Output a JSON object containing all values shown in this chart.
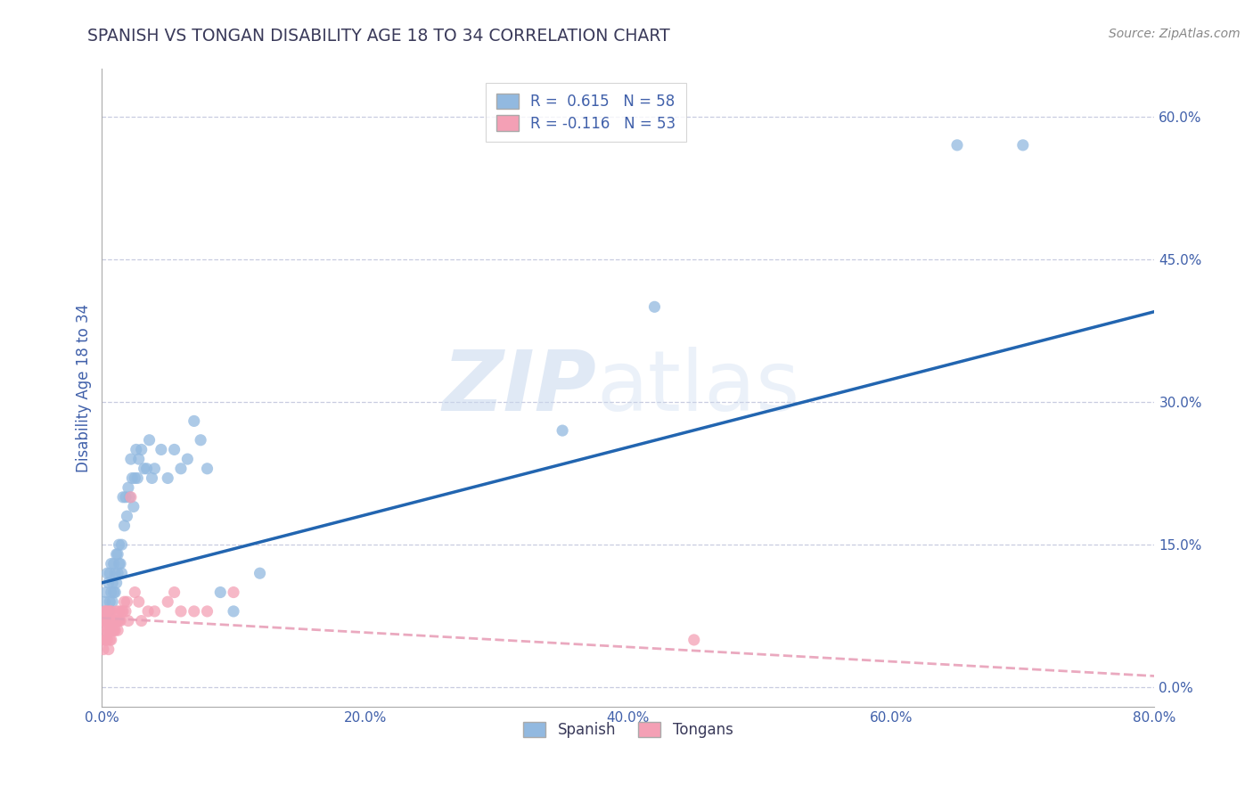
{
  "title": "SPANISH VS TONGAN DISABILITY AGE 18 TO 34 CORRELATION CHART",
  "source": "Source: ZipAtlas.com",
  "ylabel": "Disability Age 18 to 34",
  "xlabel": "",
  "xlim": [
    0,
    0.8
  ],
  "ylim": [
    -0.02,
    0.65
  ],
  "yticks": [
    0.0,
    0.15,
    0.3,
    0.45,
    0.6
  ],
  "xticks": [
    0.0,
    0.2,
    0.4,
    0.6,
    0.8
  ],
  "xtick_labels": [
    "0.0%",
    "20.0%",
    "40.0%",
    "60.0%",
    "80.0%"
  ],
  "ytick_labels": [
    "0.0%",
    "15.0%",
    "30.0%",
    "45.0%",
    "60.0%"
  ],
  "r_spanish": 0.615,
  "n_spanish": 58,
  "r_tongan": -0.116,
  "n_tongan": 53,
  "spanish_color": "#92b9e0",
  "tongan_color": "#f4a0b5",
  "spanish_line_color": "#2265b0",
  "tongan_line_color": "#e8a0b8",
  "background_color": "#ffffff",
  "grid_color": "#c8cce0",
  "title_color": "#3a3a5a",
  "axis_color": "#4060aa",
  "watermark_zip": "ZIP",
  "watermark_atlas": "atlas",
  "spanish_x": [
    0.002,
    0.003,
    0.004,
    0.005,
    0.005,
    0.006,
    0.006,
    0.007,
    0.007,
    0.008,
    0.008,
    0.009,
    0.009,
    0.01,
    0.01,
    0.011,
    0.011,
    0.012,
    0.012,
    0.013,
    0.013,
    0.014,
    0.015,
    0.015,
    0.016,
    0.017,
    0.018,
    0.019,
    0.02,
    0.021,
    0.022,
    0.023,
    0.024,
    0.025,
    0.026,
    0.027,
    0.028,
    0.03,
    0.032,
    0.034,
    0.036,
    0.038,
    0.04,
    0.045,
    0.05,
    0.055,
    0.06,
    0.065,
    0.07,
    0.075,
    0.08,
    0.09,
    0.1,
    0.12,
    0.35,
    0.42,
    0.65,
    0.7
  ],
  "spanish_y": [
    0.09,
    0.1,
    0.12,
    0.08,
    0.11,
    0.09,
    0.12,
    0.1,
    0.13,
    0.09,
    0.11,
    0.1,
    0.13,
    0.1,
    0.12,
    0.11,
    0.14,
    0.12,
    0.14,
    0.13,
    0.15,
    0.13,
    0.12,
    0.15,
    0.2,
    0.17,
    0.2,
    0.18,
    0.21,
    0.2,
    0.24,
    0.22,
    0.19,
    0.22,
    0.25,
    0.22,
    0.24,
    0.25,
    0.23,
    0.23,
    0.26,
    0.22,
    0.23,
    0.25,
    0.22,
    0.25,
    0.23,
    0.24,
    0.28,
    0.26,
    0.23,
    0.1,
    0.08,
    0.12,
    0.27,
    0.4,
    0.57,
    0.57
  ],
  "tongan_x": [
    0.001,
    0.001,
    0.001,
    0.002,
    0.002,
    0.002,
    0.003,
    0.003,
    0.003,
    0.004,
    0.004,
    0.004,
    0.005,
    0.005,
    0.005,
    0.006,
    0.006,
    0.006,
    0.007,
    0.007,
    0.007,
    0.008,
    0.008,
    0.009,
    0.009,
    0.01,
    0.01,
    0.011,
    0.011,
    0.012,
    0.012,
    0.013,
    0.013,
    0.014,
    0.015,
    0.016,
    0.017,
    0.018,
    0.019,
    0.02,
    0.022,
    0.025,
    0.028,
    0.03,
    0.035,
    0.04,
    0.05,
    0.055,
    0.06,
    0.07,
    0.08,
    0.1,
    0.45
  ],
  "tongan_y": [
    0.04,
    0.06,
    0.07,
    0.05,
    0.07,
    0.08,
    0.05,
    0.07,
    0.08,
    0.05,
    0.06,
    0.08,
    0.04,
    0.06,
    0.07,
    0.05,
    0.07,
    0.08,
    0.05,
    0.06,
    0.08,
    0.06,
    0.07,
    0.06,
    0.07,
    0.06,
    0.07,
    0.07,
    0.08,
    0.06,
    0.07,
    0.07,
    0.08,
    0.07,
    0.08,
    0.08,
    0.09,
    0.08,
    0.09,
    0.07,
    0.2,
    0.1,
    0.09,
    0.07,
    0.08,
    0.08,
    0.09,
    0.1,
    0.08,
    0.08,
    0.08,
    0.1,
    0.05
  ],
  "spanish_trendline_x": [
    0.0,
    0.8
  ],
  "spanish_trendline_y": [
    0.11,
    0.395
  ],
  "tongan_trendline_x": [
    0.0,
    0.8
  ],
  "tongan_trendline_y": [
    0.073,
    0.012
  ]
}
